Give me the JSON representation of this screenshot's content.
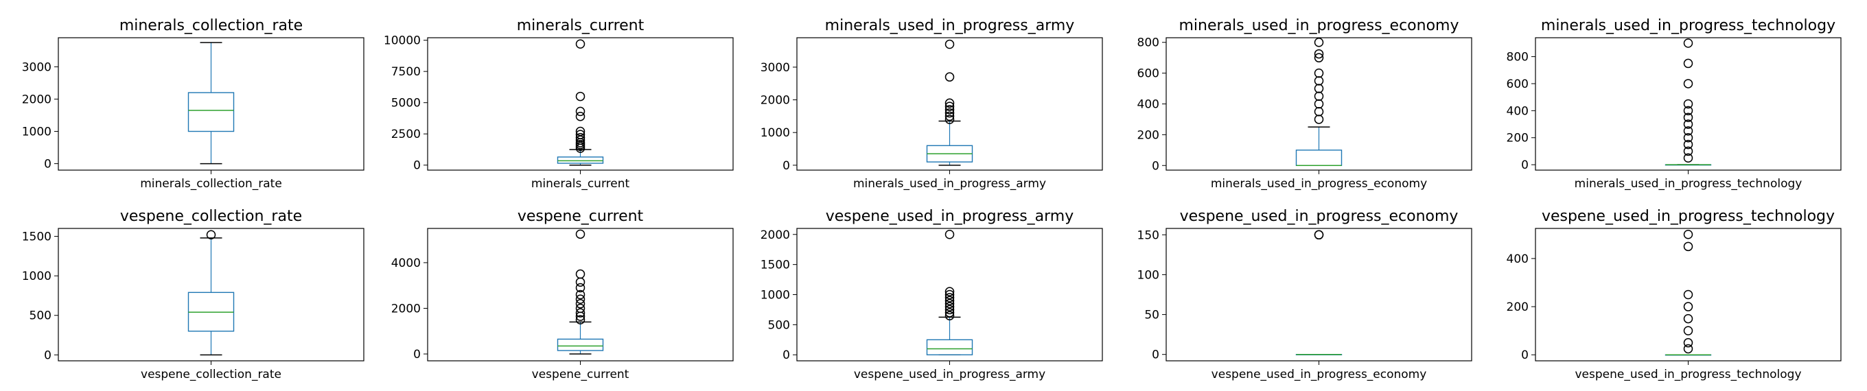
{
  "chart_data": [
    {
      "type": "box",
      "title": "minerals_collection_rate",
      "xlabel": "minerals_collection_rate",
      "ylim": [
        -200,
        3900
      ],
      "yticks": [
        0,
        1000,
        2000,
        3000
      ],
      "tick_labels": [
        "0",
        "1000",
        "2000",
        "3000"
      ],
      "box": {
        "whisker_low": 0,
        "q1": 1000,
        "median": 1650,
        "q3": 2200,
        "whisker_high": 3750,
        "outliers": []
      }
    },
    {
      "type": "box",
      "title": "minerals_current",
      "xlabel": "minerals_current",
      "ylim": [
        -400,
        10200
      ],
      "yticks": [
        0,
        2500,
        5000,
        7500,
        10000
      ],
      "tick_labels": [
        "0",
        "2500",
        "5000",
        "7500",
        "10000"
      ],
      "box": {
        "whisker_low": 0,
        "q1": 150,
        "median": 350,
        "q3": 650,
        "whisker_high": 1250,
        "outliers": [
          1350,
          1500,
          1650,
          1800,
          2000,
          2200,
          2450,
          2700,
          3900,
          4300,
          5500,
          9700
        ]
      }
    },
    {
      "type": "box",
      "title": "minerals_used_in_progress_army",
      "xlabel": "minerals_used_in_progress_army",
      "ylim": [
        -150,
        3900
      ],
      "yticks": [
        0,
        1000,
        2000,
        3000
      ],
      "tick_labels": [
        "0",
        "1000",
        "2000",
        "3000"
      ],
      "box": {
        "whisker_low": 0,
        "q1": 100,
        "median": 350,
        "q3": 600,
        "whisker_high": 1350,
        "outliers": [
          1400,
          1500,
          1600,
          1700,
          1800,
          1900,
          2700,
          3700
        ]
      }
    },
    {
      "type": "box",
      "title": "minerals_used_in_progress_economy",
      "xlabel": "minerals_used_in_progress_economy",
      "ylim": [
        -30,
        830
      ],
      "yticks": [
        0,
        200,
        400,
        600,
        800
      ],
      "tick_labels": [
        "0",
        "200",
        "400",
        "600",
        "800"
      ],
      "box": {
        "whisker_low": 0,
        "q1": 0,
        "median": 0,
        "q3": 100,
        "whisker_high": 250,
        "outliers": [
          300,
          350,
          400,
          450,
          500,
          550,
          600,
          700,
          725,
          800
        ]
      }
    },
    {
      "type": "box",
      "title": "minerals_used_in_progress_technology",
      "xlabel": "minerals_used_in_progress_technology",
      "ylim": [
        -40,
        940
      ],
      "yticks": [
        0,
        200,
        400,
        600,
        800
      ],
      "tick_labels": [
        "0",
        "200",
        "400",
        "600",
        "800"
      ],
      "box": {
        "whisker_low": 0,
        "q1": 0,
        "median": 0,
        "q3": 0,
        "whisker_high": 0,
        "outliers": [
          50,
          100,
          150,
          200,
          250,
          300,
          350,
          400,
          450,
          600,
          750,
          900
        ]
      }
    },
    {
      "type": "box",
      "title": "vespene_collection_rate",
      "xlabel": "vespene_collection_rate",
      "ylim": [
        -75,
        1600
      ],
      "yticks": [
        0,
        500,
        1000,
        1500
      ],
      "tick_labels": [
        "0",
        "500",
        "1000",
        "1500"
      ],
      "box": {
        "whisker_low": 0,
        "q1": 300,
        "median": 540,
        "q3": 790,
        "whisker_high": 1480,
        "outliers": [
          1520
        ]
      }
    },
    {
      "type": "box",
      "title": "vespene_current",
      "xlabel": "vespene_current",
      "ylim": [
        -300,
        5500
      ],
      "yticks": [
        0,
        2000,
        4000
      ],
      "tick_labels": [
        "0",
        "2000",
        "4000"
      ],
      "box": {
        "whisker_low": 0,
        "q1": 150,
        "median": 350,
        "q3": 650,
        "whisker_high": 1400,
        "outliers": [
          1500,
          1650,
          1800,
          2000,
          2200,
          2400,
          2600,
          2900,
          3150,
          3500,
          5250
        ]
      }
    },
    {
      "type": "box",
      "title": "vespene_used_in_progress_army",
      "xlabel": "vespene_used_in_progress_army",
      "ylim": [
        -100,
        2100
      ],
      "yticks": [
        0,
        500,
        1000,
        1500,
        2000
      ],
      "tick_labels": [
        "0",
        "500",
        "1000",
        "1500",
        "2000"
      ],
      "box": {
        "whisker_low": 0,
        "q1": 0,
        "median": 100,
        "q3": 250,
        "whisker_high": 625,
        "outliers": [
          650,
          700,
          750,
          800,
          850,
          900,
          950,
          1000,
          1050,
          2000
        ]
      }
    },
    {
      "type": "box",
      "title": "vespene_used_in_progress_economy",
      "xlabel": "vespene_used_in_progress_economy",
      "ylim": [
        -8,
        158
      ],
      "yticks": [
        0,
        50,
        100,
        150
      ],
      "tick_labels": [
        "0",
        "50",
        "100",
        "150"
      ],
      "box": {
        "whisker_low": 0,
        "q1": 0,
        "median": 0,
        "q3": 0,
        "whisker_high": 0,
        "outliers": [
          150,
          150
        ]
      }
    },
    {
      "type": "box",
      "title": "vespene_used_in_progress_technology",
      "xlabel": "vespene_used_in_progress_technology",
      "ylim": [
        -25,
        525
      ],
      "yticks": [
        0,
        200,
        400
      ],
      "tick_labels": [
        "0",
        "200",
        "400"
      ],
      "box": {
        "whisker_low": 0,
        "q1": 0,
        "median": 0,
        "q3": 0,
        "whisker_high": 0,
        "outliers": [
          25,
          50,
          100,
          150,
          200,
          250,
          450,
          500
        ]
      }
    }
  ],
  "colors": {
    "box": "#1f77b4",
    "median": "#2ca02c",
    "whisker_cap": "#000000",
    "outlier_edge": "#000000",
    "axes": "#000000"
  }
}
